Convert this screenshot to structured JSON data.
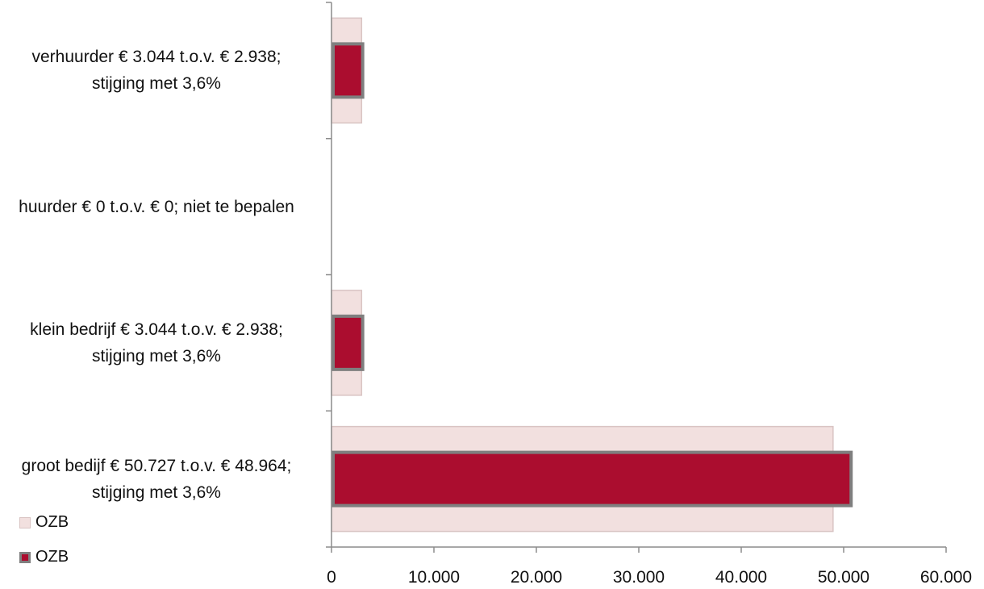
{
  "chart_data": {
    "type": "bar",
    "orientation": "horizontal",
    "categories": [
      "groot bedijf € 50.727 t.o.v. € 48.964;\nstijging met 3,6%",
      "klein bedrijf € 3.044 t.o.v. € 2.938;\nstijging met 3,6%",
      "huurder € 0 t.o.v. € 0;  niet te bepalen",
      "verhuurder € 3.044 t.o.v. € 2.938;\nstijging met 3,6%"
    ],
    "series": [
      {
        "name": "OZB",
        "values": [
          48964,
          2938,
          0,
          2938
        ],
        "color": "#f2e0df",
        "stroke": "#d9c4c3"
      },
      {
        "name": "OZB",
        "values": [
          50727,
          3044,
          0,
          3044
        ],
        "color": "#ab0d2f",
        "stroke": "#7f7f7f"
      }
    ],
    "xlim": [
      0,
      60000
    ],
    "xticks": [
      0,
      10000,
      20000,
      30000,
      40000,
      50000,
      60000
    ],
    "xtick_labels": [
      "0",
      "10.000",
      "20.000",
      "30.000",
      "40.000",
      "50.000",
      "60.000"
    ],
    "title": "",
    "xlabel": "",
    "ylabel": "",
    "grid": false,
    "legend_position": "bottom-left"
  }
}
